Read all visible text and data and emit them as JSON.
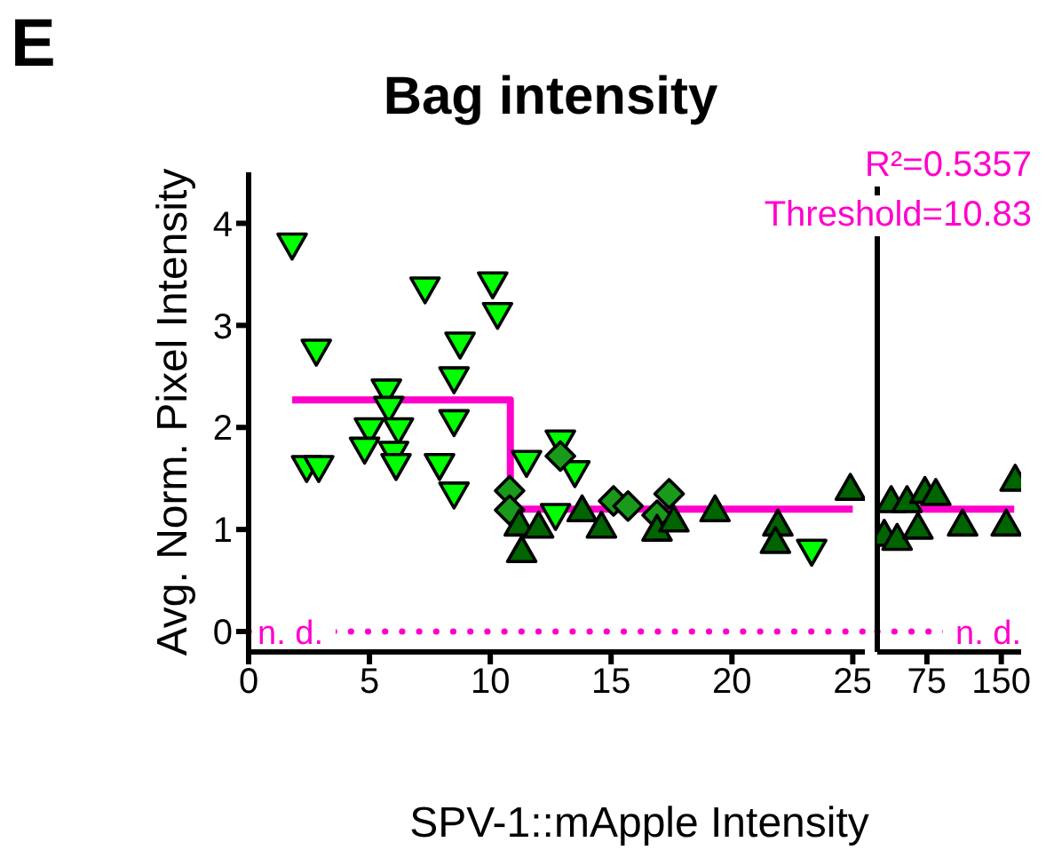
{
  "chart_data": [
    {
      "type": "scatter",
      "title": "Bag intensity",
      "xlabel": "SPV-1::mApple Intensity",
      "ylabel": "Avg. Norm. Pixel Intensity",
      "annotations": [
        "E"
      ],
      "xlim": [
        0,
        25.5
      ],
      "xticks": [
        0,
        5,
        10,
        15,
        20,
        25
      ],
      "ylim": [
        -0.2,
        4.5
      ],
      "yticks": [
        0,
        1,
        2,
        3,
        4
      ],
      "grid": false,
      "legend": false,
      "ref_lines": [
        {
          "axis": "y",
          "value": 0,
          "label": "n. d.",
          "color": "#ff00cc",
          "line_style": "dotted"
        }
      ],
      "series": [
        {
          "marker": "triangle-down",
          "color": "#00ff00",
          "x": [
            1.8,
            2.8,
            2.4,
            2.9,
            7.3,
            10.1,
            10.3,
            8.75,
            8.5,
            8.5,
            5.7,
            5.8,
            5.0,
            6.2,
            4.8,
            6.0,
            6.1,
            7.9,
            8.5,
            11.5,
            12.9,
            13.5,
            12.7,
            23.3
          ],
          "values": [
            3.79,
            2.75,
            1.61,
            1.61,
            3.36,
            3.41,
            3.11,
            2.82,
            2.48,
            2.06,
            2.36,
            2.19,
            1.98,
            1.98,
            1.79,
            1.75,
            1.63,
            1.63,
            1.35,
            1.66,
            1.86,
            1.56,
            1.14,
            0.79
          ]
        },
        {
          "marker": "diamond",
          "color": "#1a9a1a",
          "x": [
            10.8,
            10.8,
            12.9,
            15.1,
            15.7,
            17.4,
            16.9
          ],
          "values": [
            1.38,
            1.19,
            1.72,
            1.28,
            1.23,
            1.35,
            1.14
          ]
        },
        {
          "marker": "triangle",
          "color": "#006400",
          "x": [
            11.2,
            11.3,
            12.0,
            13.8,
            14.6,
            16.9,
            17.6,
            19.3,
            21.9,
            21.8,
            24.9
          ],
          "values": [
            1.05,
            0.79,
            1.03,
            1.19,
            1.03,
            1.0,
            1.09,
            1.19,
            1.05,
            0.88,
            1.4
          ]
        },
        {
          "type": "line",
          "marker": "none",
          "color": "#ff00cc",
          "x": [
            1.8,
            10.83,
            10.83,
            25
          ],
          "values": [
            2.27,
            2.27,
            1.2,
            1.2
          ]
        }
      ]
    },
    {
      "type": "scatter",
      "annotations": [
        "R²=0.5357",
        "Threshold=10.83"
      ],
      "xlim": [
        25,
        170
      ],
      "xticks": [
        75,
        150
      ],
      "ylim": [
        -0.2,
        4.5
      ],
      "yticks": [
        0,
        1,
        2,
        3,
        4
      ],
      "tick_labels": "x",
      "grid": false,
      "legend": false,
      "ref_lines": [
        {
          "axis": "y",
          "value": 0,
          "label": "n. d.",
          "color": "#ff00cc",
          "line_style": "dotted"
        }
      ],
      "series": [
        {
          "marker": "triangle",
          "color": "#006400",
          "x": [
            32,
            39,
            45,
            55,
            66,
            73,
            84,
            111,
            155,
            164
          ],
          "values": [
            0.95,
            1.28,
            0.91,
            1.28,
            1.02,
            1.37,
            1.35,
            1.05,
            1.05,
            1.49
          ]
        },
        {
          "type": "line",
          "marker": "none",
          "color": "#ff00cc",
          "x": [
            30,
            163
          ],
          "values": [
            1.2,
            1.2
          ]
        }
      ]
    }
  ]
}
